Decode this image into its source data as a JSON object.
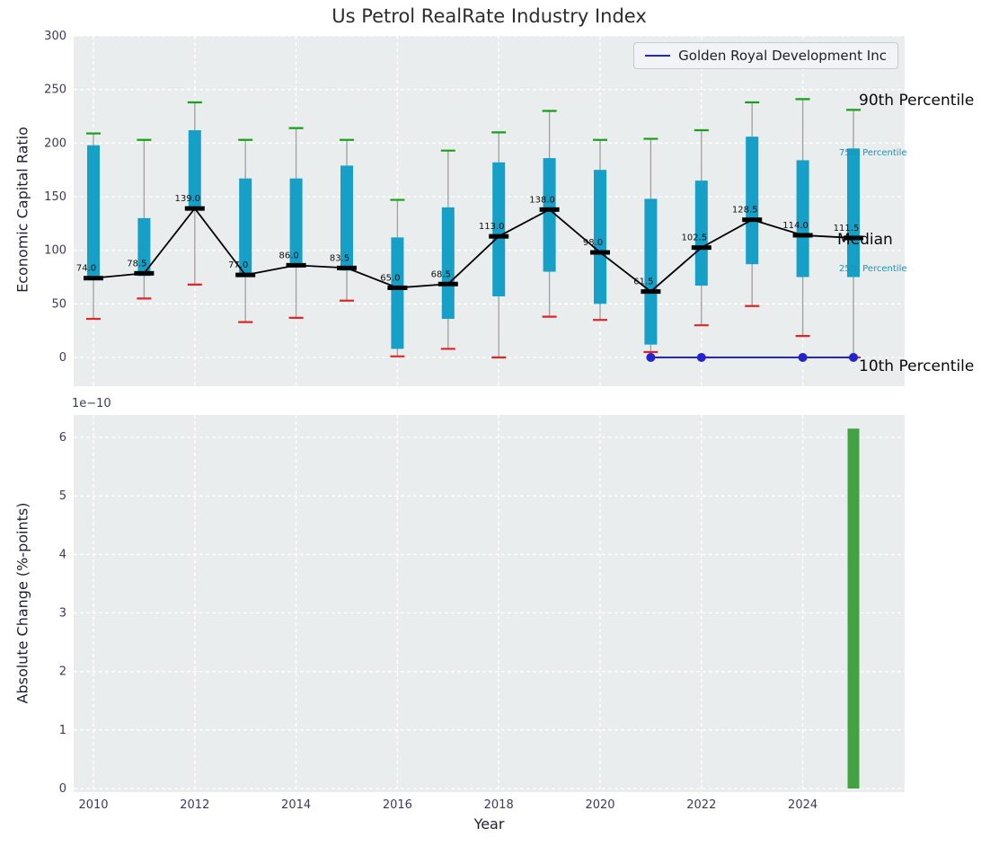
{
  "chart_data": [
    {
      "type": "boxplot+line",
      "title": "Us Petrol RealRate Industry Index",
      "ylabel": "Economic Capital Ratio",
      "ylim": [
        0,
        300
      ],
      "yticks": [
        0,
        50,
        100,
        150,
        200,
        250,
        300
      ],
      "grid": "white-dashed",
      "years": [
        2010,
        2011,
        2012,
        2013,
        2014,
        2015,
        2016,
        2017,
        2018,
        2019,
        2020,
        2021,
        2022,
        2023,
        2024,
        2025
      ],
      "percentiles": {
        "p90": [
          209,
          203,
          238,
          203,
          214,
          203,
          147,
          193,
          210,
          230,
          203,
          204,
          212,
          238,
          241,
          231
        ],
        "p75": [
          198,
          130,
          212,
          167,
          167,
          179,
          112,
          140,
          182,
          186,
          175,
          148,
          165,
          206,
          184,
          195
        ],
        "median": [
          74.0,
          78.5,
          139.0,
          77.0,
          86.0,
          83.5,
          65.0,
          68.5,
          113.0,
          138.0,
          98.0,
          61.5,
          102.5,
          128.5,
          114.0,
          111.5
        ],
        "p25": [
          72,
          76,
          137,
          75,
          84,
          81,
          8,
          36,
          57,
          80,
          50,
          12,
          67,
          87,
          75,
          75
        ],
        "p10": [
          36,
          55,
          68,
          33,
          37,
          53,
          1,
          8,
          0,
          38,
          35,
          5,
          30,
          48,
          20,
          0
        ]
      },
      "colors": {
        "box": "#16a0c8",
        "p90_cap": "#15a015",
        "p10_cap": "#e02525",
        "median": "#000000",
        "whisker": "#9f9f9f"
      },
      "company_line": {
        "name": "Golden Royal Development Inc",
        "color": "#2424cc",
        "years": [
          2021,
          2022,
          2023,
          2024,
          2025
        ],
        "values": [
          0,
          0,
          0,
          0,
          0
        ],
        "marker_years": [
          2021,
          2022,
          2024,
          2025
        ]
      },
      "legend_position": "top-right",
      "annotations": [
        {
          "label": "90th Percentile",
          "size": "large",
          "color": "#0a0a0a"
        },
        {
          "label": "75th Percentile",
          "size": "small",
          "color": "#2091b5"
        },
        {
          "label": "Median",
          "size": "large",
          "color": "#0a0a0a"
        },
        {
          "label": "25th Percentile",
          "size": "small",
          "color": "#2091b5"
        },
        {
          "label": "10th Percentile",
          "size": "large",
          "color": "#0a0a0a"
        }
      ]
    },
    {
      "type": "bar",
      "ylabel": "Absolute Change (%-points)",
      "xlabel": "Year",
      "offset_label": "1e−10",
      "yticks": [
        0,
        1,
        2,
        3,
        4,
        5,
        6
      ],
      "xticks": [
        2010,
        2012,
        2014,
        2016,
        2018,
        2020,
        2022,
        2024
      ],
      "ylim": [
        0,
        6.4
      ],
      "bars": [
        {
          "year": 2025,
          "value": 6.15,
          "color": "#43a343"
        }
      ]
    }
  ]
}
